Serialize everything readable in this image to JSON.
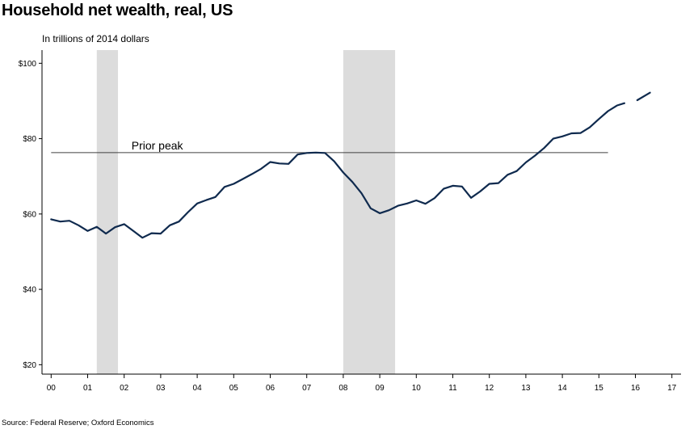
{
  "title": "Household net wealth, real, US",
  "subtitle": "In trillions of 2014 dollars",
  "source": "Source: Federal Reserve; Oxford Economics",
  "colors": {
    "line": "#0f2a4e",
    "recession": "#dcdcdc",
    "peak_line": "#404040"
  },
  "chart_data": {
    "type": "line",
    "title": "Household net wealth, real, US",
    "ylabel": "In trillions of 2014 dollars",
    "xlim": [
      -0.25,
      17.25
    ],
    "ylim": [
      17.5,
      103.5
    ],
    "y_ticks": [
      20,
      40,
      60,
      80,
      100
    ],
    "y_tick_labels": [
      "$20",
      "$40",
      "$60",
      "$80",
      "$100"
    ],
    "x_ticks": [
      0,
      1,
      2,
      3,
      4,
      5,
      6,
      7,
      8,
      9,
      10,
      11,
      12,
      13,
      14,
      15,
      16,
      17
    ],
    "x_tick_labels": [
      "00",
      "01",
      "02",
      "03",
      "04",
      "05",
      "06",
      "07",
      "08",
      "09",
      "10",
      "11",
      "12",
      "13",
      "14",
      "15",
      "16",
      "17"
    ],
    "grid": false,
    "recessions": [
      [
        1.25,
        1.83
      ],
      [
        8.0,
        9.42
      ]
    ],
    "prior_peak": {
      "label": "Prior peak",
      "value": 76.3,
      "x_range": [
        0,
        15.25
      ]
    },
    "series": [
      {
        "values": [
          [
            0.0,
            58.6
          ],
          [
            0.25,
            58.0
          ],
          [
            0.5,
            58.2
          ],
          [
            0.75,
            57.0
          ],
          [
            1.0,
            55.5
          ],
          [
            1.25,
            56.6
          ],
          [
            1.5,
            54.8
          ],
          [
            1.75,
            56.5
          ],
          [
            2.0,
            57.3
          ],
          [
            2.25,
            55.5
          ],
          [
            2.5,
            53.7
          ],
          [
            2.75,
            54.9
          ],
          [
            3.0,
            54.8
          ],
          [
            3.25,
            57.0
          ],
          [
            3.5,
            58.0
          ],
          [
            3.75,
            60.5
          ],
          [
            4.0,
            62.8
          ],
          [
            4.25,
            63.7
          ],
          [
            4.5,
            64.5
          ],
          [
            4.75,
            67.2
          ],
          [
            5.0,
            68.0
          ],
          [
            5.25,
            69.3
          ],
          [
            5.5,
            70.6
          ],
          [
            5.75,
            72.0
          ],
          [
            6.0,
            73.8
          ],
          [
            6.25,
            73.4
          ],
          [
            6.5,
            73.3
          ],
          [
            6.75,
            75.8
          ],
          [
            7.0,
            76.2
          ],
          [
            7.25,
            76.3
          ],
          [
            7.5,
            76.2
          ],
          [
            7.75,
            74.0
          ],
          [
            8.0,
            71.0
          ],
          [
            8.25,
            68.5
          ],
          [
            8.5,
            65.5
          ],
          [
            8.75,
            61.5
          ],
          [
            9.0,
            60.2
          ],
          [
            9.25,
            61.0
          ],
          [
            9.5,
            62.2
          ],
          [
            9.75,
            62.8
          ],
          [
            10.0,
            63.6
          ],
          [
            10.25,
            62.7
          ],
          [
            10.5,
            64.2
          ],
          [
            10.75,
            66.7
          ],
          [
            11.0,
            67.5
          ],
          [
            11.25,
            67.3
          ],
          [
            11.5,
            64.3
          ],
          [
            11.75,
            66.0
          ],
          [
            12.0,
            68.0
          ],
          [
            12.25,
            68.2
          ],
          [
            12.5,
            70.4
          ],
          [
            12.75,
            71.4
          ],
          [
            13.0,
            73.7
          ],
          [
            13.25,
            75.5
          ],
          [
            13.5,
            77.5
          ],
          [
            13.75,
            80.0
          ],
          [
            14.0,
            80.6
          ],
          [
            14.25,
            81.4
          ],
          [
            14.5,
            81.5
          ],
          [
            14.75,
            83.0
          ],
          [
            15.0,
            85.2
          ],
          [
            15.25,
            87.3
          ],
          [
            15.5,
            88.8
          ],
          [
            15.7,
            89.4
          ]
        ]
      },
      {
        "values": [
          [
            16.05,
            90.2
          ],
          [
            16.4,
            92.2
          ]
        ]
      }
    ],
    "legend": "none"
  }
}
